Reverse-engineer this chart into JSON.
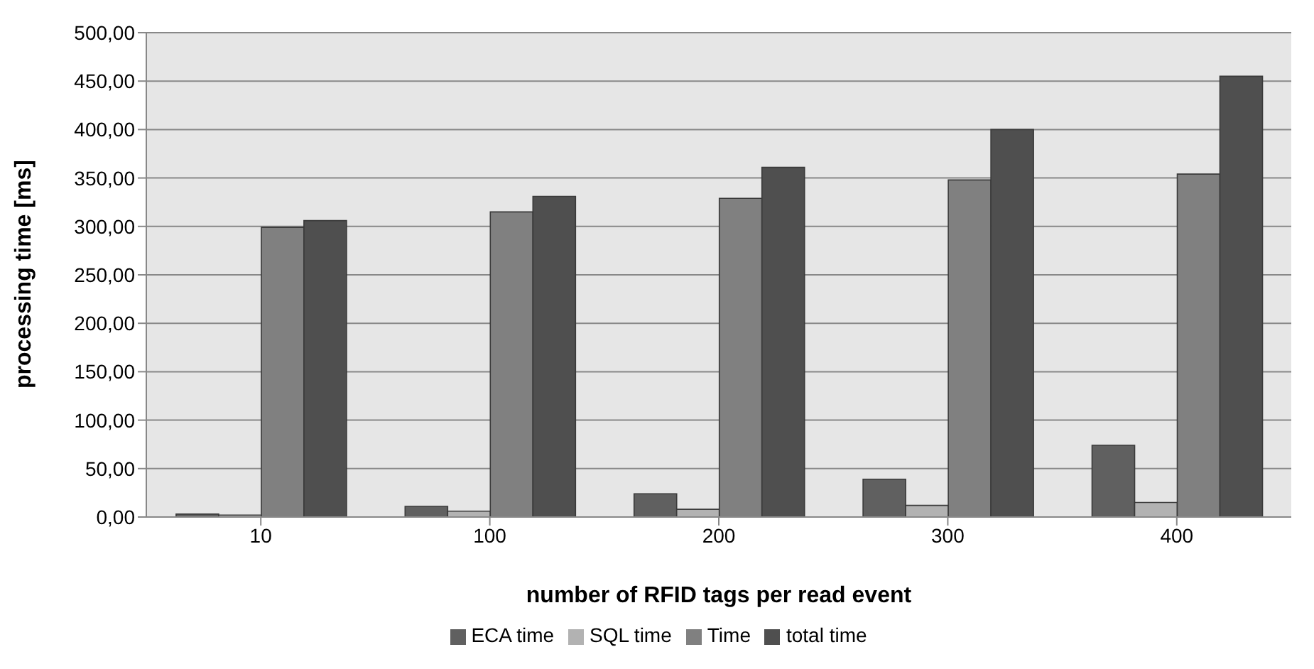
{
  "chart_data": {
    "type": "bar",
    "xlabel": "number of RFID tags per read event",
    "ylabel": "processing time [ms]",
    "categories": [
      "10",
      "100",
      "200",
      "300",
      "400"
    ],
    "series": [
      {
        "name": "ECA time",
        "color": "#606060",
        "values": [
          3,
          11,
          24,
          39,
          74
        ]
      },
      {
        "name": "SQL time",
        "color": "#b2b2b2",
        "values": [
          2,
          6,
          8,
          12,
          15
        ]
      },
      {
        "name": "Time",
        "color": "#808080",
        "values": [
          299,
          315,
          329,
          348,
          354
        ]
      },
      {
        "name": "total time",
        "color": "#4f4f4f",
        "values": [
          306,
          331,
          361,
          400,
          455
        ]
      }
    ],
    "ylim": [
      0,
      500
    ],
    "yticks": [
      {
        "value": 0,
        "label": "0,00"
      },
      {
        "value": 50,
        "label": "50,00"
      },
      {
        "value": 100,
        "label": "100,00"
      },
      {
        "value": 150,
        "label": "150,00"
      },
      {
        "value": 200,
        "label": "200,00"
      },
      {
        "value": 250,
        "label": "250,00"
      },
      {
        "value": 300,
        "label": "300,00"
      },
      {
        "value": 350,
        "label": "350,00"
      },
      {
        "value": 400,
        "label": "400,00"
      },
      {
        "value": 450,
        "label": "450,00"
      },
      {
        "value": 500,
        "label": "500,00"
      }
    ],
    "grid": "y",
    "legend": "bottom"
  }
}
